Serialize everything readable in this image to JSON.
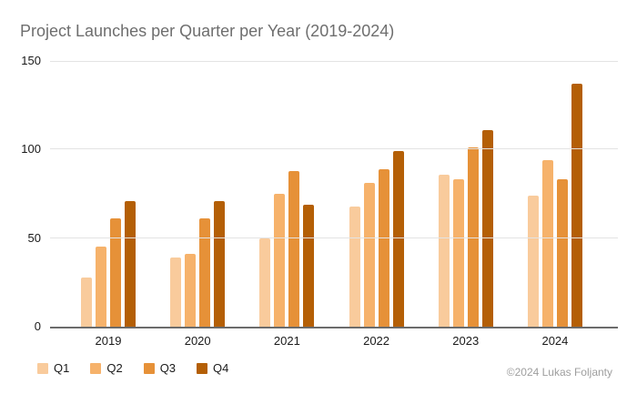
{
  "chart_data": {
    "type": "bar",
    "title": "Project Launches per Quarter per Year (2019-2024)",
    "categories": [
      "2019",
      "2020",
      "2021",
      "2022",
      "2023",
      "2024"
    ],
    "series": [
      {
        "name": "Q1",
        "color": "#f9cb9c",
        "values": [
          28,
          39,
          50,
          68,
          86,
          74
        ]
      },
      {
        "name": "Q2",
        "color": "#f6b26b",
        "values": [
          45,
          41,
          75,
          81,
          83,
          94
        ]
      },
      {
        "name": "Q3",
        "color": "#e69138",
        "values": [
          61,
          61,
          88,
          89,
          101,
          83
        ]
      },
      {
        "name": "Q4",
        "color": "#b45f06",
        "values": [
          71,
          71,
          69,
          99,
          111,
          137
        ]
      }
    ],
    "xlabel": "",
    "ylabel": "",
    "ylim": [
      0,
      150
    ],
    "yticks": [
      0,
      50,
      100,
      150
    ],
    "grid": true,
    "legend_position": "bottom-left"
  },
  "colors": {
    "title_text": "#6e6e6e",
    "axis_line": "#6b6b6b",
    "gridline": "#e3e3e3",
    "tick_text": "#1a1a1a",
    "footer_text": "#9e9e9e",
    "background": "#ffffff"
  },
  "footer": {
    "credit": "©2024 Lukas Foljanty"
  }
}
